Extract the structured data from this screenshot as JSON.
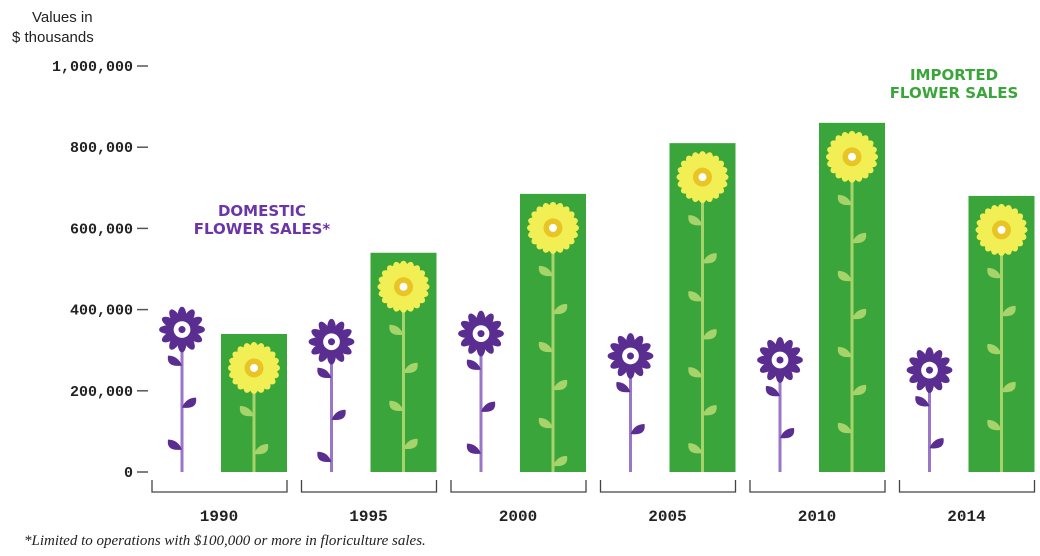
{
  "chart_data": {
    "type": "bar",
    "ylabel_line1": "Values in",
    "ylabel_line2": "$ thousands",
    "ylim": [
      0,
      1000000
    ],
    "y_ticks": [
      "1,000,000",
      "800,000",
      "600,000",
      "400,000",
      "200,000",
      "0"
    ],
    "y_tick_values": [
      1000000,
      800000,
      600000,
      400000,
      200000,
      0
    ],
    "categories": [
      "1990",
      "1995",
      "2000",
      "2005",
      "2010",
      "2014"
    ],
    "series": [
      {
        "name": "DOMESTIC FLOWER SALES*",
        "name_line1": "DOMESTIC",
        "name_line2": "FLOWER SALES*",
        "values": [
          405000,
          375000,
          395000,
          340000,
          330000,
          305000
        ],
        "color": "#5a2d91"
      },
      {
        "name": "IMPORTED FLOWER SALES",
        "name_line1": "IMPORTED",
        "name_line2": "FLOWER SALES",
        "values": [
          340000,
          540000,
          685000,
          810000,
          860000,
          680000
        ],
        "color": "#3aa53a"
      }
    ],
    "grid": false,
    "legend_placement": "annotations near bars (domestic left, imported top-right)"
  },
  "footnote": "*Limited to operations with $100,000 or more in floriculture sales.",
  "colors": {
    "domestic": "#5a2d91",
    "domestic_accent": "#7a4bb8",
    "imported_bar": "#3aa53a",
    "imported_stem": "#a6d46a",
    "sunflower_petal": "#f2ef55",
    "sunflower_center": "#e8c424",
    "axis": "#555555"
  }
}
